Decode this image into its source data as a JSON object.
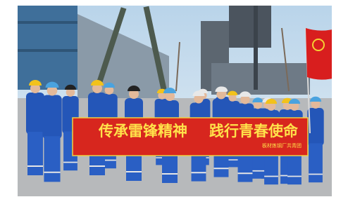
{
  "banner": {
    "slogan": [
      "传承雷锋精神",
      "践行青春使命"
    ],
    "signature": "板材炼钢厂共青团"
  }
}
